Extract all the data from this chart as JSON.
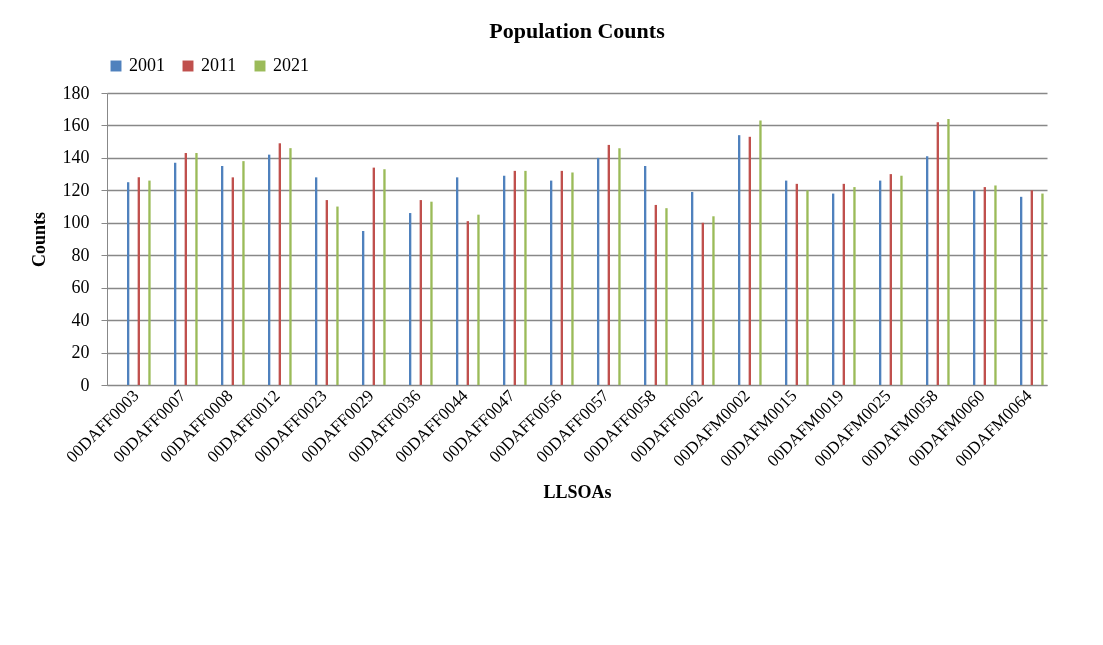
{
  "chart_data": {
    "type": "bar",
    "title": "Population Counts",
    "xlabel": "LLSOAs",
    "ylabel": "Counts",
    "categories": [
      "00DAFF0003",
      "00DAFF0007",
      "00DAFF0008",
      "00DAFF0012",
      "00DAFF0023",
      "00DAFF0029",
      "00DAFF0036",
      "00DAFF0044",
      "00DAFF0047",
      "00DAFF0056",
      "00DAFF0057",
      "00DAFF0058",
      "00DAFF0062",
      "00DAFM0002",
      "00DAFM0015",
      "00DAFM0019",
      "00DAFM0025",
      "00DAFM0058",
      "00DAFM0060",
      "00DAFM0064"
    ],
    "series": [
      {
        "name": "2001",
        "color": "#4f81bd",
        "values": [
          125,
          137,
          135,
          142,
          128,
          95,
          106,
          128,
          129,
          126,
          140,
          135,
          119,
          154,
          126,
          118,
          126,
          141,
          120,
          116
        ]
      },
      {
        "name": "2011",
        "color": "#c0504d",
        "values": [
          128,
          143,
          128,
          149,
          114,
          134,
          114,
          101,
          132,
          132,
          148,
          111,
          100,
          153,
          124,
          124,
          130,
          162,
          122,
          120
        ]
      },
      {
        "name": "2021",
        "color": "#9bbb59",
        "values": [
          126,
          143,
          138,
          146,
          110,
          133,
          113,
          105,
          132,
          131,
          146,
          109,
          104,
          163,
          120,
          122,
          129,
          164,
          123,
          118
        ]
      }
    ],
    "ylim": [
      0,
      180
    ],
    "yticks": [
      0,
      20,
      40,
      60,
      80,
      100,
      120,
      140,
      160,
      180
    ],
    "grid": "y",
    "legend": "top"
  }
}
